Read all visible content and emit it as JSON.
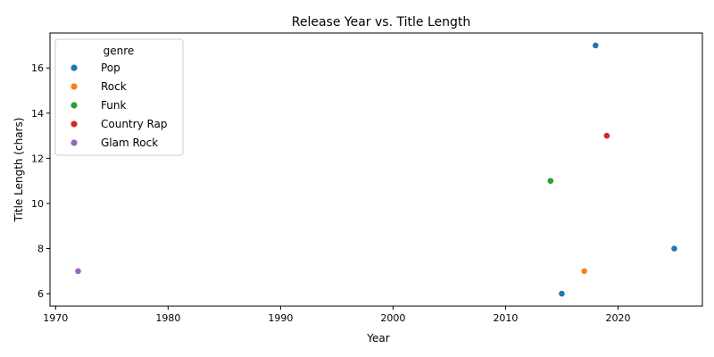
{
  "chart_data": {
    "type": "scatter",
    "title": "Release Year vs. Title Length",
    "xlabel": "Year",
    "ylabel": "Title Length (chars)",
    "xlim": [
      1969.5,
      2027.5
    ],
    "ylim": [
      5.45,
      17.55
    ],
    "xticks": [
      1970,
      1980,
      1990,
      2000,
      2010,
      2020
    ],
    "yticks": [
      6,
      8,
      10,
      12,
      14,
      16
    ],
    "grid": false,
    "legend": {
      "title": "genre",
      "placement": "top-left",
      "entries": [
        "Pop",
        "Rock",
        "Funk",
        "Country Rap",
        "Glam Rock"
      ]
    },
    "colors": {
      "Pop": "#1f77b4",
      "Rock": "#ff7f0e",
      "Funk": "#2ca02c",
      "Country Rap": "#d62728",
      "Glam Rock": "#9467bd"
    },
    "points": [
      {
        "x": 2018,
        "y": 17,
        "genre": "Pop"
      },
      {
        "x": 2019,
        "y": 13,
        "genre": "Country Rap"
      },
      {
        "x": 2014,
        "y": 11,
        "genre": "Funk"
      },
      {
        "x": 2025,
        "y": 8,
        "genre": "Pop"
      },
      {
        "x": 2017,
        "y": 7,
        "genre": "Rock"
      },
      {
        "x": 1972,
        "y": 7,
        "genre": "Glam Rock"
      },
      {
        "x": 2015,
        "y": 6,
        "genre": "Pop"
      }
    ]
  }
}
